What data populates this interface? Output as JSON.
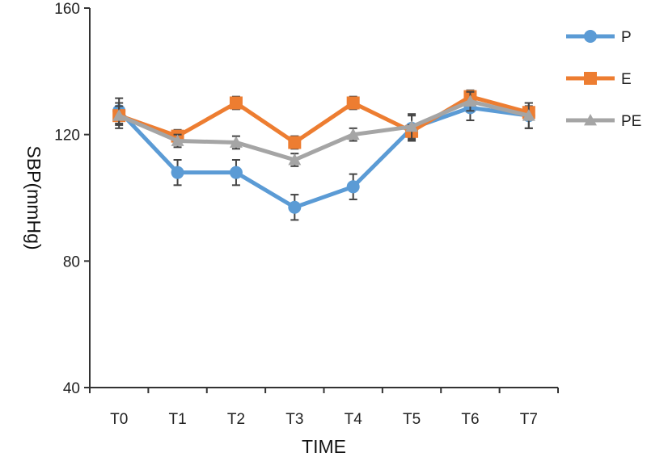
{
  "chart_data": {
    "type": "line",
    "title": "",
    "xlabel": "TIME",
    "ylabel": "SBP(mmHg)",
    "ylim": [
      40,
      160
    ],
    "yticks": [
      40,
      80,
      120,
      160
    ],
    "grid": false,
    "legend_position": "top-right",
    "categories": [
      "T0",
      "T1",
      "T2",
      "T3",
      "T4",
      "T5",
      "T6",
      "T7"
    ],
    "series": [
      {
        "name": "P",
        "color": "#5b9bd5",
        "marker": "circle",
        "values": [
          127.5,
          108,
          108,
          97,
          103.5,
          122,
          128.5,
          126
        ],
        "errors": [
          4,
          4,
          4,
          4,
          4,
          4,
          4,
          4
        ]
      },
      {
        "name": "E",
        "color": "#ed7d31",
        "marker": "square",
        "values": [
          126,
          119.5,
          130,
          117.5,
          130,
          121,
          132,
          127
        ],
        "errors": [
          3,
          2,
          2,
          2,
          2,
          2,
          2,
          2
        ]
      },
      {
        "name": "PE",
        "color": "#a5a5a5",
        "marker": "triangle",
        "values": [
          126,
          118,
          117.5,
          112,
          120,
          122.5,
          130.5,
          126
        ],
        "errors": [
          4,
          2,
          2,
          2,
          2,
          4,
          3,
          4
        ]
      }
    ]
  }
}
